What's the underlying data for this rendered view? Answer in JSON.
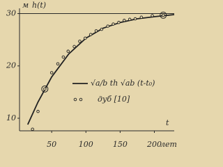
{
  "chart_data": {
    "type": "line",
    "y_unit": "м",
    "y_label": "h(t)",
    "x_label": "t",
    "x_unit": "лет",
    "xlim": [
      3,
      229
    ],
    "ylim": [
      7.6,
      31
    ],
    "xticks": [
      50,
      100,
      150,
      200
    ],
    "yticks": [
      10,
      20,
      30
    ],
    "reference_line": 30,
    "series": [
      {
        "name": "√a/b th √ab (t-t₀)",
        "type": "line",
        "color": "#222",
        "x": [
          15,
          30,
          50,
          75,
          100,
          125,
          150,
          175,
          200,
          229
        ],
        "values": [
          8.8,
          13.1,
          17.9,
          22.3,
          25.3,
          27.2,
          28.3,
          29.0,
          29.4,
          29.8
        ]
      },
      {
        "name": "дуб [10]",
        "type": "scatter",
        "color": "#222",
        "circled": [
          2,
          21
        ],
        "x": [
          22,
          30,
          40,
          50,
          59,
          67,
          74,
          83,
          91,
          99,
          107,
          115,
          123,
          132,
          140,
          148,
          156,
          164,
          172,
          181,
          197,
          213
        ],
        "values": [
          7.9,
          11.3,
          15.6,
          18.7,
          20.4,
          21.7,
          22.8,
          23.7,
          24.7,
          25.3,
          26.0,
          26.7,
          27.0,
          27.6,
          28.0,
          28.3,
          28.7,
          28.9,
          29.0,
          29.3,
          29.6,
          29.7
        ]
      }
    ]
  }
}
